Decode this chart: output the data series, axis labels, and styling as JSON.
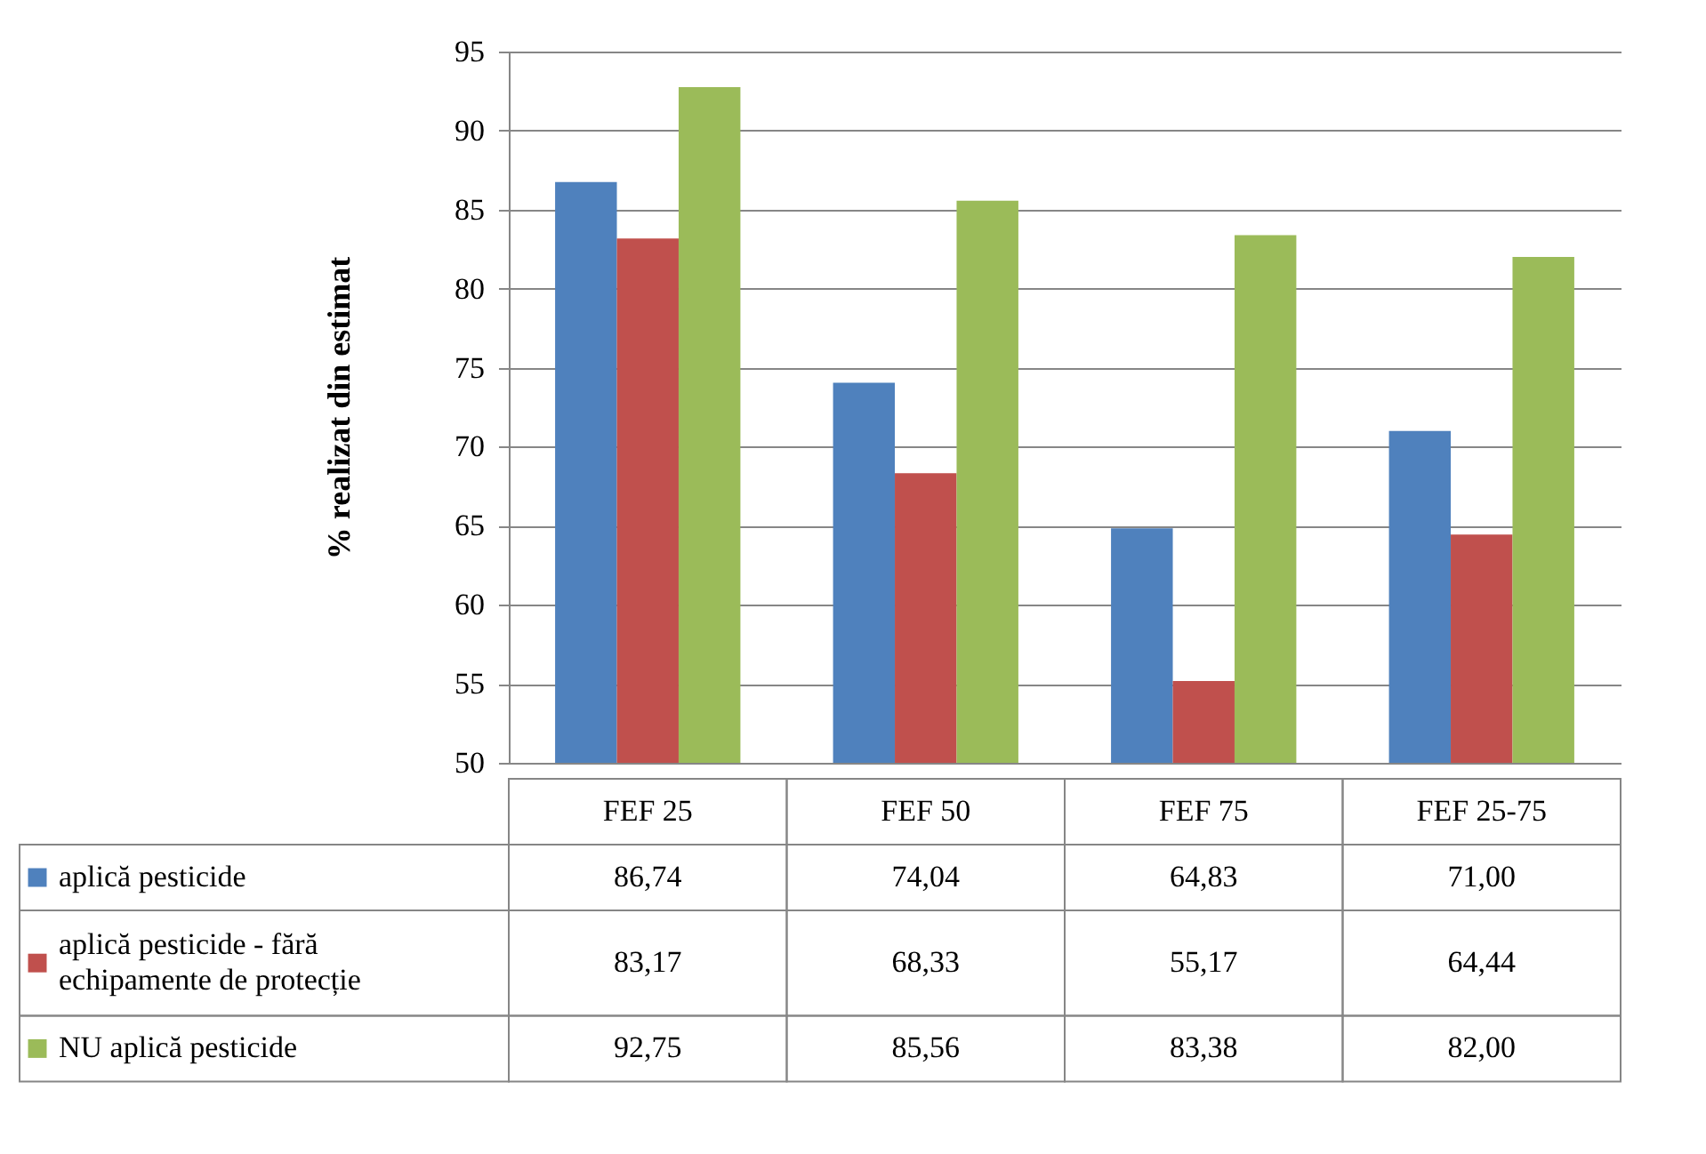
{
  "chart_data": {
    "type": "bar",
    "ylabel": "% realizat din estimat",
    "categories": [
      "FEF 25",
      "FEF 50",
      "FEF 75",
      "FEF 25-75"
    ],
    "series": [
      {
        "name": "aplică pesticide",
        "color": "#4f81bd",
        "values": [
          86.74,
          74.04,
          64.83,
          71.0
        ],
        "value_labels": [
          "86,74",
          "74,04",
          "64,83",
          "71,00"
        ]
      },
      {
        "name": "aplică pesticide - fără echipamente de protecție",
        "color": "#c0504d",
        "values": [
          83.17,
          68.33,
          55.17,
          64.44
        ],
        "value_labels": [
          "83,17",
          "68,33",
          "55,17",
          "64,44"
        ]
      },
      {
        "name": "NU aplică pesticide",
        "color": "#9bbb59",
        "values": [
          92.75,
          85.56,
          83.38,
          82.0
        ],
        "value_labels": [
          "92,75",
          "85,56",
          "83,38",
          "82,00"
        ]
      }
    ],
    "ylim": [
      50,
      95
    ],
    "yticks": [
      50,
      55,
      60,
      65,
      70,
      75,
      80,
      85,
      90,
      95
    ],
    "grid": "y",
    "legend": "bottom"
  }
}
